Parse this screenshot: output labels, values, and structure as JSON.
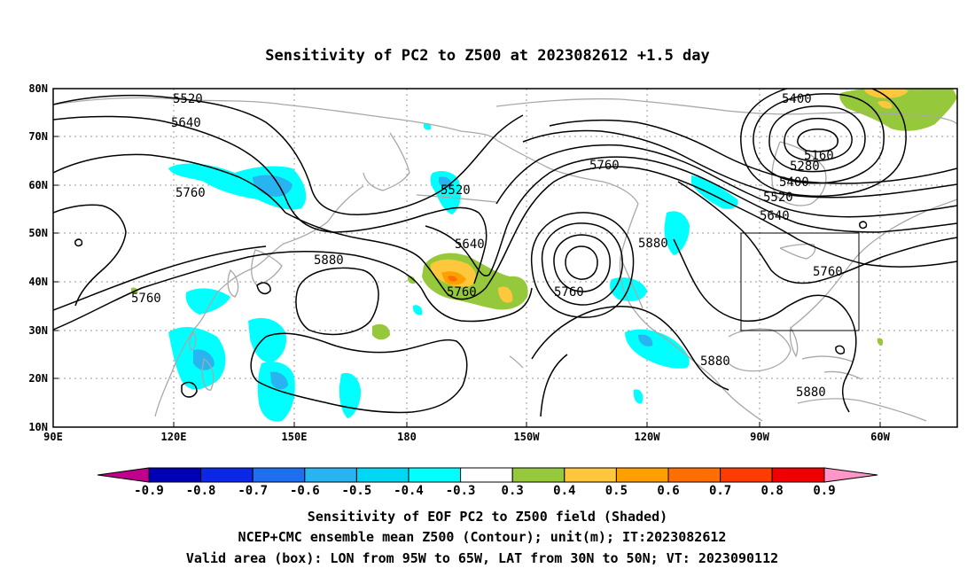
{
  "title": "Sensitivity of PC2 to Z500 at 2023082612 +1.5 day",
  "map": {
    "lon_labels": [
      "90E",
      "120E",
      "150E",
      "180",
      "150W",
      "120W",
      "90W",
      "60W"
    ],
    "lat_labels": [
      "80N",
      "70N",
      "60N",
      "50N",
      "40N",
      "30N",
      "20N",
      "10N"
    ],
    "contour_labels": [
      {
        "id": "c5520-w",
        "text": "5520"
      },
      {
        "id": "c5640-w",
        "text": "5640"
      },
      {
        "id": "c5760-w",
        "text": "5760"
      },
      {
        "id": "c5520-c",
        "text": "5520"
      },
      {
        "id": "c5640-c",
        "text": "5640"
      },
      {
        "id": "c5880-w",
        "text": "5880"
      },
      {
        "id": "c5760-sw",
        "text": "5760"
      },
      {
        "id": "c5760-low",
        "text": "5760"
      },
      {
        "id": "c5760-n",
        "text": "5760"
      },
      {
        "id": "c5880-e",
        "text": "5880"
      },
      {
        "id": "c5760-ridge",
        "text": "5760"
      },
      {
        "id": "c5400-ne",
        "text": "5400"
      },
      {
        "id": "c5160",
        "text": "5160"
      },
      {
        "id": "c5280",
        "text": "5280"
      },
      {
        "id": "c5400-e",
        "text": "5400"
      },
      {
        "id": "c5520-e",
        "text": "5520"
      },
      {
        "id": "c5640-e",
        "text": "5640"
      },
      {
        "id": "c5760-e",
        "text": "5760"
      },
      {
        "id": "c5880-gulf",
        "text": "5880"
      },
      {
        "id": "c5880-atl",
        "text": "5880"
      }
    ],
    "box": {
      "lon_min": "95W",
      "lon_max": "65W",
      "lat_min": "30N",
      "lat_max": "50N"
    },
    "colors": {
      "neg_0.9": "#c0008c",
      "neg_0.8": "#0000b4",
      "neg_0.7": "#0a28e6",
      "neg_0.6": "#1e6ef0",
      "neg_0.5": "#28b4f0",
      "neg_0.4": "#00d7f5",
      "neg_0.3": "#00ffff",
      "neutral": "#ffffff",
      "pos_0.3": "#96c83c",
      "pos_0.4": "#ffc83c",
      "pos_0.5": "#ffa000",
      "pos_0.6": "#ff6e00",
      "pos_0.7": "#ff3c00",
      "pos_0.8": "#f00000",
      "pos_0.9": "#ff96c8"
    }
  },
  "colorbar": {
    "labels": [
      "-0.9",
      "-0.8",
      "-0.7",
      "-0.6",
      "-0.5",
      "-0.4",
      "-0.3",
      "0.3",
      "0.4",
      "0.5",
      "0.6",
      "0.7",
      "0.8",
      "0.9"
    ]
  },
  "captions": {
    "line1": "Sensitivity of EOF PC2 to Z500 field (Shaded)",
    "line2": "NCEP+CMC ensemble mean Z500 (Contour); unit(m); IT:2023082612",
    "line3": "Valid area (box): LON from 95W to 65W, LAT from 30N to 50N; VT: 2023090112"
  }
}
